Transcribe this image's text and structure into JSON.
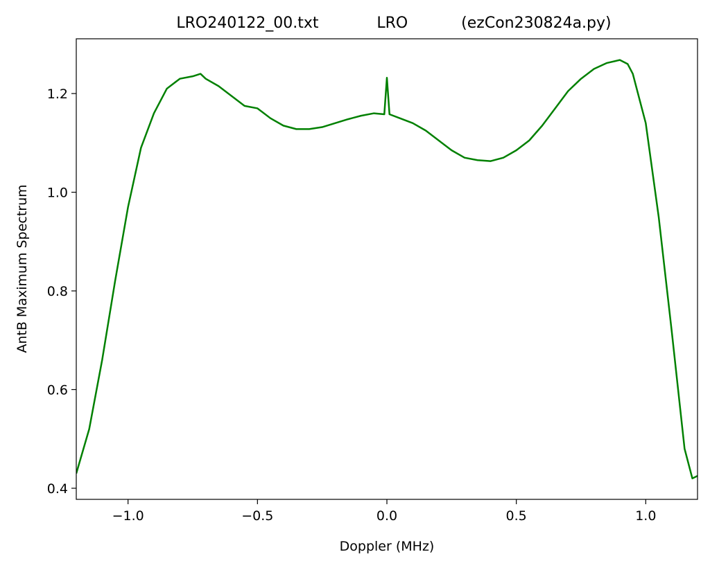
{
  "chart_data": {
    "type": "line",
    "title": "LRO240122_00.txt            LRO           (ezCon230824a.py)",
    "xlabel": "Doppler (MHz)",
    "ylabel": "AntB Maximum Spectrum",
    "x": [
      -1.2,
      -1.15,
      -1.1,
      -1.05,
      -1.0,
      -0.95,
      -0.9,
      -0.85,
      -0.8,
      -0.75,
      -0.72,
      -0.7,
      -0.65,
      -0.6,
      -0.55,
      -0.5,
      -0.45,
      -0.4,
      -0.35,
      -0.3,
      -0.25,
      -0.2,
      -0.15,
      -0.1,
      -0.05,
      -0.01,
      0.0,
      0.01,
      0.05,
      0.1,
      0.15,
      0.2,
      0.25,
      0.3,
      0.35,
      0.4,
      0.45,
      0.5,
      0.55,
      0.6,
      0.65,
      0.7,
      0.75,
      0.8,
      0.85,
      0.9,
      0.93,
      0.95,
      1.0,
      1.05,
      1.1,
      1.15,
      1.18,
      1.2
    ],
    "series": [
      {
        "name": "AntB",
        "color": "#008000",
        "values": [
          0.43,
          0.52,
          0.66,
          0.82,
          0.97,
          1.09,
          1.16,
          1.21,
          1.23,
          1.235,
          1.24,
          1.23,
          1.215,
          1.195,
          1.175,
          1.17,
          1.15,
          1.135,
          1.128,
          1.128,
          1.132,
          1.14,
          1.148,
          1.155,
          1.16,
          1.158,
          1.232,
          1.158,
          1.15,
          1.14,
          1.125,
          1.105,
          1.085,
          1.07,
          1.065,
          1.063,
          1.07,
          1.085,
          1.105,
          1.135,
          1.17,
          1.205,
          1.23,
          1.25,
          1.262,
          1.268,
          1.26,
          1.24,
          1.14,
          0.95,
          0.72,
          0.48,
          0.42,
          0.425
        ]
      }
    ],
    "xlim": [
      -1.2,
      1.2
    ],
    "xticks": [
      {
        "value": -1.0,
        "label": "−1.0"
      },
      {
        "value": -0.5,
        "label": "−0.5"
      },
      {
        "value": 0.0,
        "label": "0.0"
      },
      0.5,
      {
        "value": 1.0,
        "label": "1.0"
      }
    ],
    "ylim": [
      0.3775,
      1.311
    ],
    "yticks": [
      0.4,
      0.6,
      0.8,
      {
        "value": 1.0,
        "label": "1.0"
      },
      1.2
    ],
    "grid": false
  }
}
